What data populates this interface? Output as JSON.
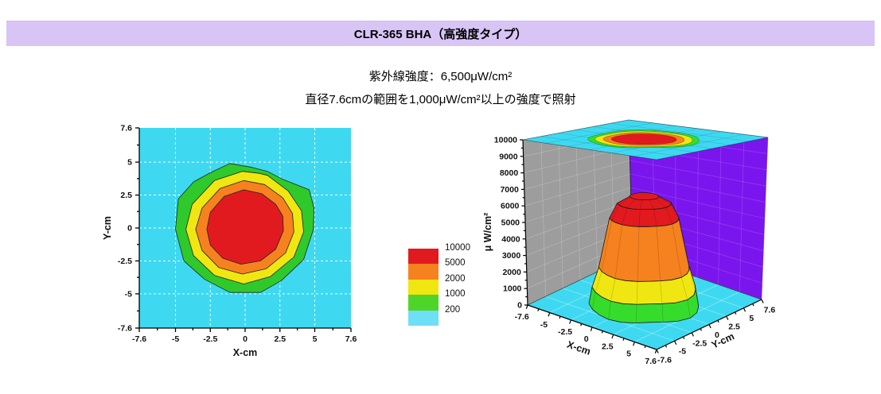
{
  "header": {
    "title": "CLR-365 BHA（高強度タイプ）"
  },
  "subtitle": {
    "line1": "紫外線強度：6,500μW/cm²",
    "line2": "直径7.6cmの範囲を1,000μW/cm²以上の強度で照射"
  },
  "palette": {
    "banner_bg": "#d8c5f6",
    "red": "#e11a20",
    "orange": "#f5821e",
    "yellow": "#f0e611",
    "green": "#2fc92c",
    "green_bright": "#35dc2b",
    "cyan": "#3ed9f1",
    "legend_green": "#4fd42a",
    "legend_cyan": "#6fdef7",
    "purple_wall": "#7b15ee",
    "gray_wall": "#9d9d9d"
  },
  "chart_data": [
    {
      "id": "contour2d",
      "type": "heatmap",
      "xlabel": "X-cm",
      "ylabel": "Y-cm",
      "xlim": [
        -7.6,
        7.6
      ],
      "ylim": [
        -7.6,
        7.6
      ],
      "ticks": [
        -7.6,
        -5,
        -2.5,
        0,
        2.5,
        5,
        7.6
      ],
      "tick_labels": [
        "-7.6",
        "-5",
        "-2.5",
        "0",
        "2.5",
        "5",
        "7.6"
      ],
      "minor_ticks": [
        -6.3,
        -3.75,
        -1.25,
        1.25,
        3.75,
        6.3
      ],
      "grid": {
        "lines": [
          -5,
          -2.5,
          0,
          2.5,
          5
        ],
        "style": "dashed-white"
      },
      "background_color_key": "cyan",
      "rings": [
        {
          "level": 200,
          "color_key": "green",
          "points": [
            [
              -1.1,
              4.9
            ],
            [
              0.5,
              4.6
            ],
            [
              1.6,
              4.3
            ],
            [
              2.7,
              3.7
            ],
            [
              4.6,
              2.9
            ],
            [
              4.95,
              1.5
            ],
            [
              4.9,
              -0.1
            ],
            [
              4.2,
              -2.4
            ],
            [
              2.6,
              -4.0
            ],
            [
              1.1,
              -4.9
            ],
            [
              -1.1,
              -4.9
            ],
            [
              -2.9,
              -3.9
            ],
            [
              -4.4,
              -2.5
            ],
            [
              -5.0,
              -0.1
            ],
            [
              -4.8,
              2.2
            ],
            [
              -3.7,
              3.5
            ],
            [
              -2.5,
              4.2
            ]
          ]
        },
        {
          "level": 1000,
          "color_key": "yellow",
          "points": [
            [
              -0.2,
              4.3
            ],
            [
              1.0,
              4.15
            ],
            [
              1.6,
              4.0
            ],
            [
              3.1,
              2.8
            ],
            [
              4.05,
              1.3
            ],
            [
              4.2,
              -0.3
            ],
            [
              3.5,
              -2.2
            ],
            [
              1.8,
              -3.7
            ],
            [
              -0.1,
              -4.25
            ],
            [
              -2.2,
              -3.6
            ],
            [
              -3.7,
              -2.1
            ],
            [
              -4.25,
              -0.1
            ],
            [
              -3.8,
              1.8
            ],
            [
              -2.2,
              3.6
            ]
          ]
        },
        {
          "level": 2000,
          "color_key": "orange",
          "points": [
            [
              -0.1,
              3.6
            ],
            [
              1.4,
              3.3
            ],
            [
              2.7,
              2.3
            ],
            [
              3.4,
              1.1
            ],
            [
              3.5,
              -0.3
            ],
            [
              2.9,
              -1.9
            ],
            [
              1.5,
              -3.1
            ],
            [
              -0.2,
              -3.5
            ],
            [
              -1.9,
              -3.0
            ],
            [
              -3.1,
              -1.7
            ],
            [
              -3.55,
              -0.1
            ],
            [
              -3.1,
              1.5
            ],
            [
              -1.8,
              3.0
            ]
          ]
        },
        {
          "level": 5000,
          "color_key": "red",
          "points": [
            [
              -0.1,
              2.9
            ],
            [
              1.2,
              2.6
            ],
            [
              2.2,
              1.8
            ],
            [
              2.7,
              0.9
            ],
            [
              2.75,
              -0.2
            ],
            [
              2.2,
              -1.6
            ],
            [
              1.1,
              -2.5
            ],
            [
              -0.3,
              -2.75
            ],
            [
              -1.6,
              -2.3
            ],
            [
              -2.5,
              -1.3
            ],
            [
              -2.75,
              -0.1
            ],
            [
              -2.5,
              1.2
            ],
            [
              -1.5,
              2.4
            ]
          ]
        }
      ]
    },
    {
      "id": "legend",
      "type": "colorbar",
      "entries": [
        {
          "value": "10000",
          "color_key": "red"
        },
        {
          "value": "5000",
          "color_key": "orange"
        },
        {
          "value": "2000",
          "color_key": "yellow"
        },
        {
          "value": "1000",
          "color_key": "legend_green"
        },
        {
          "value": "200",
          "color_key": "legend_cyan"
        }
      ]
    },
    {
      "id": "surface3d",
      "type": "surface",
      "zlabel": "μ W/cm²",
      "xlabel": "X-cm",
      "ylabel": "Y-cm",
      "xlim": [
        -7.6,
        7.6
      ],
      "ylim": [
        -7.6,
        7.6
      ],
      "zlim": [
        0,
        10000
      ],
      "xy_ticks": [
        -7.6,
        -5,
        -2.5,
        0,
        2.5,
        5,
        7.6
      ],
      "xy_tick_labels": [
        "-7.6",
        "-5",
        "-2.5",
        "0",
        "2.5",
        "5",
        "7.6"
      ],
      "xy_minor_ticks": [
        -6.3,
        -3.75,
        -1.25,
        1.25,
        3.75,
        6.3
      ],
      "z_ticks": [
        0,
        1000,
        2000,
        3000,
        4000,
        5000,
        6000,
        7000,
        8000,
        9000,
        10000
      ],
      "peak": 6500,
      "walls": {
        "left_color_key": "gray_wall",
        "right_color_key": "purple_wall",
        "floor_color_key": "cyan",
        "top_color_key": "cyan"
      },
      "boundaries": {
        "z": [
          0,
          1000,
          2200,
          5200,
          6100,
          6500
        ],
        "r": [
          5.0,
          4.7,
          4.1,
          3.1,
          2.4,
          1.3
        ]
      },
      "band_color_keys": [
        "green_bright",
        "yellow",
        "orange",
        "red",
        "red"
      ],
      "cap_color_key": "red",
      "top_rings": [
        {
          "level": 200,
          "r": 4.85,
          "color_key": "green_bright"
        },
        {
          "level": 1000,
          "r": 4.25,
          "color_key": "yellow"
        },
        {
          "level": 2000,
          "r": 3.55,
          "color_key": "orange"
        },
        {
          "level": 5000,
          "r": 2.85,
          "color_key": "red"
        }
      ]
    }
  ]
}
